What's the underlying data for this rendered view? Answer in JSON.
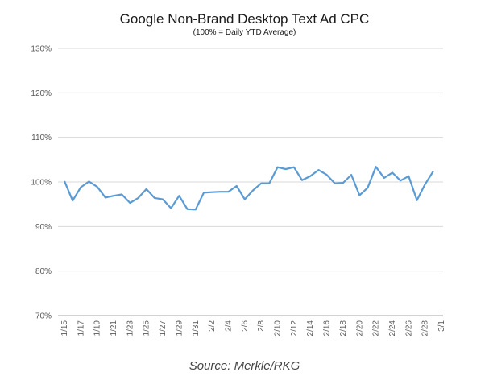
{
  "chart_data": {
    "type": "line",
    "title": "Google Non-Brand Desktop Text Ad CPC",
    "subtitle": "(100% = Daily YTD Average)",
    "source": "Source: Merkle/RKG",
    "yticks": [
      "130%",
      "120%",
      "110%",
      "100%",
      "90%",
      "80%",
      "70%"
    ],
    "ylim": [
      70,
      130
    ],
    "grid": true,
    "line_color": "#5b9bd5",
    "grid_color": "#d9d9d9",
    "x_tick_labels": [
      "1/15",
      "1/17",
      "1/19",
      "1/21",
      "1/23",
      "1/25",
      "1/27",
      "1/29",
      "1/31",
      "2/2",
      "2/4",
      "2/6",
      "2/8",
      "2/10",
      "2/12",
      "2/14",
      "2/16",
      "2/18",
      "2/20",
      "2/22",
      "2/24",
      "2/26",
      "2/28",
      "3/1"
    ],
    "series": [
      {
        "values": [
          100.2,
          95.8,
          98.8,
          100.1,
          98.9,
          96.5,
          96.9,
          97.2,
          95.3,
          96.4,
          98.4,
          96.4,
          96.1,
          94.1,
          96.9,
          93.9,
          93.8,
          97.6,
          97.7,
          97.8,
          97.8,
          99.1,
          96.1,
          98.1,
          99.7,
          99.7,
          103.3,
          102.9,
          103.3,
          100.4,
          101.3,
          102.7,
          101.6,
          99.7,
          99.8,
          101.6,
          97.0,
          98.7,
          103.4,
          100.9,
          102.1,
          100.3,
          101.3,
          95.9,
          99.5,
          102.4
        ]
      }
    ]
  }
}
